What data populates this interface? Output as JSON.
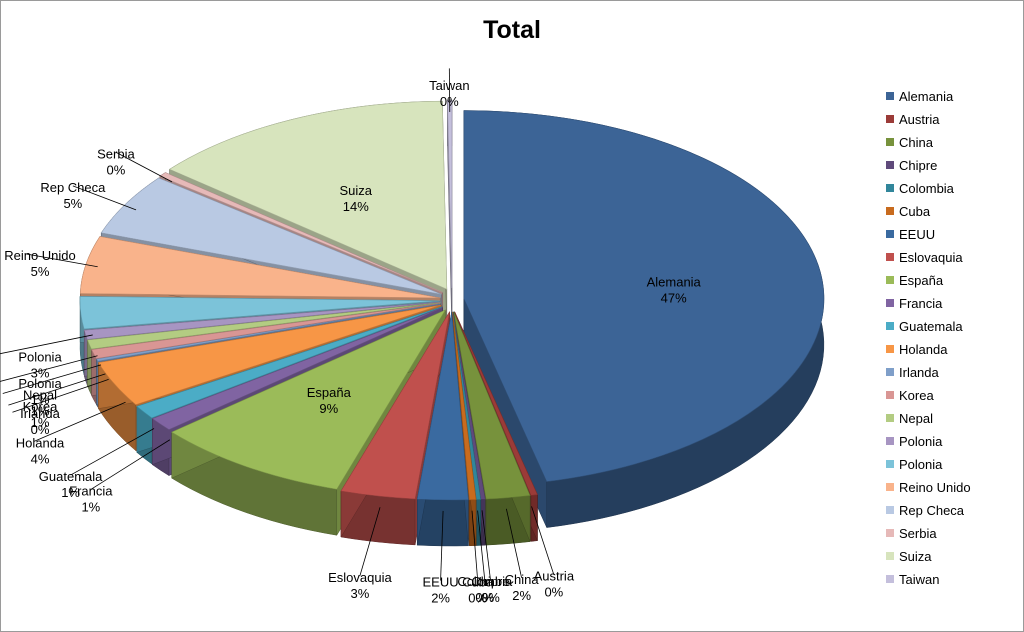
{
  "chart_data": {
    "type": "pie",
    "title": "Total",
    "legend_position": "right",
    "categories": [
      "Alemania",
      "Austria",
      "China",
      "Chipre",
      "Colombia",
      "Cuba",
      "EEUU",
      "Eslovaquia",
      "España",
      "Francia",
      "Guatemala",
      "Holanda",
      "Irlanda",
      "Korea",
      "Nepal",
      "Polonia",
      "Polonia",
      "Reino Unido",
      "Rep Checa",
      "Serbia",
      "Suiza",
      "Taiwan"
    ],
    "values": [
      47,
      0.3,
      2,
      0.2,
      0.2,
      0.3,
      2.3,
      3.4,
      9,
      1.2,
      1.2,
      4,
      0.2,
      0.8,
      0.8,
      0.8,
      2.8,
      5,
      5.4,
      0.4,
      14,
      0.2
    ],
    "value_labels": [
      "47%",
      "0%",
      "2%",
      "0%",
      "0%",
      "0%",
      "2%",
      "3%",
      "9%",
      "1%",
      "1%",
      "4%",
      "0%",
      "1%",
      "1%",
      "1%",
      "3%",
      "5%",
      "5%",
      "0%",
      "14%",
      "0%"
    ],
    "colors": [
      "#3c6496",
      "#9b3b38",
      "#77923c",
      "#5f4a7b",
      "#31869b",
      "#c86b1e",
      "#3a6aa0",
      "#c0504d",
      "#9bbb59",
      "#8064a2",
      "#4bacc6",
      "#f79646",
      "#7f9fc9",
      "#d99694",
      "#b3cc82",
      "#a795c2",
      "#7cc3d9",
      "#f9b38b",
      "#b9c9e3",
      "#e6b9b8",
      "#d7e4bd",
      "#c4bfdc"
    ]
  }
}
